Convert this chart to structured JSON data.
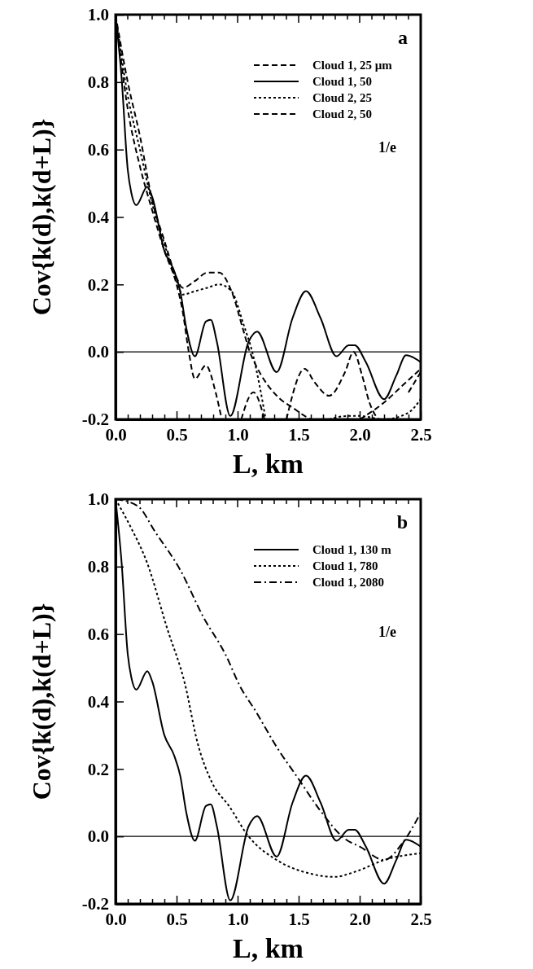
{
  "chart_data": [
    {
      "type": "line",
      "xlabel": "L, km",
      "ylabel": "Cov{k(d),k(d+L)}",
      "xlim": [
        0,
        2.5
      ],
      "ylim": [
        -0.2,
        1.0
      ],
      "xticks": [
        {
          "value": 0,
          "label": "0.0"
        },
        {
          "value": 0.1,
          "label": null
        },
        {
          "value": 0.2,
          "label": null
        },
        {
          "value": 0.3,
          "label": null
        },
        {
          "value": 0.4,
          "label": null
        },
        {
          "value": 0.5,
          "label": "0.5"
        },
        {
          "value": 0.6,
          "label": null
        },
        {
          "value": 0.7,
          "label": null
        },
        {
          "value": 0.8,
          "label": null
        },
        {
          "value": 0.9,
          "label": null
        },
        {
          "value": 1.0,
          "label": "1.0"
        },
        {
          "value": 1.1,
          "label": null
        },
        {
          "value": 1.2,
          "label": null
        },
        {
          "value": 1.3,
          "label": null
        },
        {
          "value": 1.4,
          "label": null
        },
        {
          "value": 1.5,
          "label": "1.5"
        },
        {
          "value": 1.6,
          "label": null
        },
        {
          "value": 1.7,
          "label": null
        },
        {
          "value": 1.8,
          "label": null
        },
        {
          "value": 1.9,
          "label": null
        },
        {
          "value": 2.0,
          "label": "2.0"
        },
        {
          "value": 2.1,
          "label": null
        },
        {
          "value": 2.2,
          "label": null
        },
        {
          "value": 2.3,
          "label": null
        },
        {
          "value": 2.4,
          "label": null
        },
        {
          "value": 2.5,
          "label": "2.5"
        }
      ],
      "yticks": [
        {
          "value": -0.2,
          "label": "-0.2"
        },
        {
          "value": 0,
          "label": "0.0"
        },
        {
          "value": 0.2,
          "label": "0.2"
        },
        {
          "value": 0.4,
          "label": "0.4"
        },
        {
          "value": 0.6,
          "label": "0.6"
        },
        {
          "value": 0.8,
          "label": "0.8"
        },
        {
          "value": 1.0,
          "label": "1.0"
        }
      ],
      "legend": "top right",
      "grid": false,
      "ref_lines": [
        {
          "axis": "y",
          "value": 0,
          "color": "#000000",
          "line_style": "solid"
        }
      ],
      "annotations": [
        "a",
        "1/e"
      ],
      "series": [
        {
          "name": "Cloud 1, 25 µm",
          "color": "#000000",
          "line_style": "dashed",
          "x": [
            0,
            0.1,
            0.2,
            0.3,
            0.4,
            0.5,
            0.55,
            0.6,
            0.65,
            0.74,
            0.82,
            0.87,
            0.95,
            1.03,
            1.13,
            1.22,
            1.3,
            1.4,
            1.55,
            1.63,
            1.75,
            1.88,
            1.95,
            2.02,
            2.08,
            2.15,
            2.3,
            2.4,
            2.5
          ],
          "values": [
            1,
            0.72,
            0.55,
            0.42,
            0.3,
            0.2,
            0.12,
            0.0,
            -0.08,
            -0.04,
            -0.12,
            -0.2,
            null,
            -0.2,
            -0.12,
            -0.2,
            null,
            -0.2,
            -0.05,
            -0.09,
            -0.13,
            -0.06,
            0.0,
            -0.07,
            -0.15,
            -0.2,
            null,
            -0.12,
            -0.06
          ]
        },
        {
          "name": "Cloud 1, 50",
          "color": "#000000",
          "line_style": "solid",
          "x": [
            0,
            0.05,
            0.1,
            0.13,
            0.17,
            0.26,
            0.3,
            0.4,
            0.48,
            0.53,
            0.58,
            0.65,
            0.74,
            0.78,
            0.83,
            0.94,
            1.09,
            1.16,
            1.32,
            1.45,
            1.56,
            1.68,
            1.81,
            1.91,
            1.96,
            2.05,
            2.2,
            2.3,
            2.38,
            2.5
          ],
          "values": [
            1,
            0.81,
            0.54,
            0.47,
            0.435,
            0.49,
            0.46,
            0.3,
            0.24,
            0.18,
            0.07,
            -0.013,
            0.09,
            0.095,
            0.03,
            -0.19,
            0.03,
            0.06,
            -0.06,
            0.1,
            0.18,
            0.1,
            -0.013,
            0.02,
            0.02,
            -0.03,
            -0.14,
            -0.07,
            -0.01,
            -0.03
          ]
        },
        {
          "name": "Cloud 2, 25",
          "color": "#000000",
          "line_style": "dotted",
          "x": [
            0,
            0.1,
            0.2,
            0.3,
            0.4,
            0.5,
            0.55,
            0.65,
            0.75,
            0.85,
            0.95,
            1.05,
            1.12,
            1.18,
            1.23,
            1.5,
            1.75,
            1.9,
            2.0,
            2.2,
            2.4,
            2.5
          ],
          "values": [
            1,
            0.76,
            0.6,
            0.44,
            0.32,
            0.21,
            0.17,
            0.18,
            0.19,
            0.2,
            0.18,
            0.08,
            0.0,
            -0.1,
            -0.2,
            null,
            -0.2,
            -0.19,
            -0.19,
            -0.2,
            -0.18,
            -0.14
          ]
        },
        {
          "name": "Cloud 2, 50",
          "color": "#000000",
          "line_style": "dashed",
          "x": [
            0,
            0.1,
            0.2,
            0.3,
            0.4,
            0.5,
            0.55,
            0.65,
            0.75,
            0.85,
            0.95,
            1.05,
            1.1,
            1.15,
            1.25,
            1.35,
            1.45,
            1.55,
            1.6,
            1.8,
            2.0,
            2.2,
            2.35,
            2.5
          ],
          "values": [
            1,
            0.8,
            0.64,
            0.45,
            0.33,
            0.22,
            0.19,
            0.21,
            0.235,
            0.235,
            0.18,
            0.06,
            0.0,
            -0.04,
            -0.1,
            -0.14,
            -0.165,
            -0.19,
            -0.2,
            null,
            -0.2,
            -0.15,
            -0.1,
            -0.05
          ]
        }
      ]
    },
    {
      "type": "line",
      "xlabel": "L, km",
      "ylabel": "Cov{k(d),k(d+L)}",
      "xlim": [
        0,
        2.5
      ],
      "ylim": [
        -0.2,
        1.0
      ],
      "xticks": [
        {
          "value": 0,
          "label": "0.0"
        },
        {
          "value": 0.1,
          "label": null
        },
        {
          "value": 0.2,
          "label": null
        },
        {
          "value": 0.3,
          "label": null
        },
        {
          "value": 0.4,
          "label": null
        },
        {
          "value": 0.5,
          "label": "0.5"
        },
        {
          "value": 0.6,
          "label": null
        },
        {
          "value": 0.7,
          "label": null
        },
        {
          "value": 0.8,
          "label": null
        },
        {
          "value": 0.9,
          "label": null
        },
        {
          "value": 1.0,
          "label": "1.0"
        },
        {
          "value": 1.1,
          "label": null
        },
        {
          "value": 1.2,
          "label": null
        },
        {
          "value": 1.3,
          "label": null
        },
        {
          "value": 1.4,
          "label": null
        },
        {
          "value": 1.5,
          "label": "1.5"
        },
        {
          "value": 1.6,
          "label": null
        },
        {
          "value": 1.7,
          "label": null
        },
        {
          "value": 1.8,
          "label": null
        },
        {
          "value": 1.9,
          "label": null
        },
        {
          "value": 2.0,
          "label": "2.0"
        },
        {
          "value": 2.1,
          "label": null
        },
        {
          "value": 2.2,
          "label": null
        },
        {
          "value": 2.3,
          "label": null
        },
        {
          "value": 2.4,
          "label": null
        },
        {
          "value": 2.5,
          "label": "2.5"
        }
      ],
      "yticks": [
        {
          "value": -0.2,
          "label": "-0.2"
        },
        {
          "value": 0,
          "label": "0.0"
        },
        {
          "value": 0.2,
          "label": "0.2"
        },
        {
          "value": 0.4,
          "label": "0.4"
        },
        {
          "value": 0.6,
          "label": "0.6"
        },
        {
          "value": 0.8,
          "label": "0.8"
        },
        {
          "value": 1.0,
          "label": "1.0"
        }
      ],
      "legend": "top right",
      "grid": false,
      "ref_lines": [
        {
          "axis": "y",
          "value": 0,
          "color": "#000000",
          "line_style": "solid"
        }
      ],
      "annotations": [
        "b",
        "1/e"
      ],
      "series": [
        {
          "name": "Cloud 1, 130 m",
          "color": "#000000",
          "line_style": "solid",
          "x": [
            0,
            0.05,
            0.1,
            0.13,
            0.17,
            0.26,
            0.3,
            0.4,
            0.48,
            0.53,
            0.58,
            0.65,
            0.74,
            0.78,
            0.83,
            0.94,
            1.09,
            1.16,
            1.32,
            1.45,
            1.56,
            1.68,
            1.81,
            1.91,
            1.96,
            2.05,
            2.2,
            2.3,
            2.38,
            2.5
          ],
          "values": [
            1,
            0.81,
            0.54,
            0.47,
            0.435,
            0.49,
            0.46,
            0.3,
            0.24,
            0.18,
            0.07,
            -0.013,
            0.09,
            0.095,
            0.03,
            -0.19,
            0.03,
            0.06,
            -0.06,
            0.1,
            0.18,
            0.1,
            -0.013,
            0.02,
            0.02,
            -0.03,
            -0.14,
            -0.07,
            -0.01,
            -0.03
          ]
        },
        {
          "name": "Cloud 1, 780",
          "color": "#000000",
          "line_style": "dotted",
          "x": [
            0,
            0.12,
            0.26,
            0.42,
            0.57,
            0.67,
            0.79,
            0.93,
            1.09,
            1.32,
            1.59,
            1.8,
            1.92,
            2.0,
            2.2,
            2.5
          ],
          "values": [
            1,
            0.92,
            0.81,
            0.62,
            0.45,
            0.28,
            0.16,
            0.09,
            0.0,
            -0.07,
            -0.11,
            -0.12,
            -0.11,
            -0.1,
            -0.07,
            -0.05
          ]
        },
        {
          "name": "Cloud 1, 2080",
          "color": "#000000",
          "line_style": "dashdot",
          "x": [
            0,
            0.18,
            0.33,
            0.53,
            0.72,
            0.9,
            1.02,
            1.15,
            1.32,
            1.5,
            1.67,
            1.89,
            2.0,
            2.2,
            2.35,
            2.5
          ],
          "values": [
            1,
            0.98,
            0.9,
            0.79,
            0.65,
            0.54,
            0.445,
            0.37,
            0.265,
            0.17,
            0.08,
            -0.01,
            -0.03,
            -0.07,
            -0.02,
            0.07
          ]
        }
      ]
    }
  ]
}
